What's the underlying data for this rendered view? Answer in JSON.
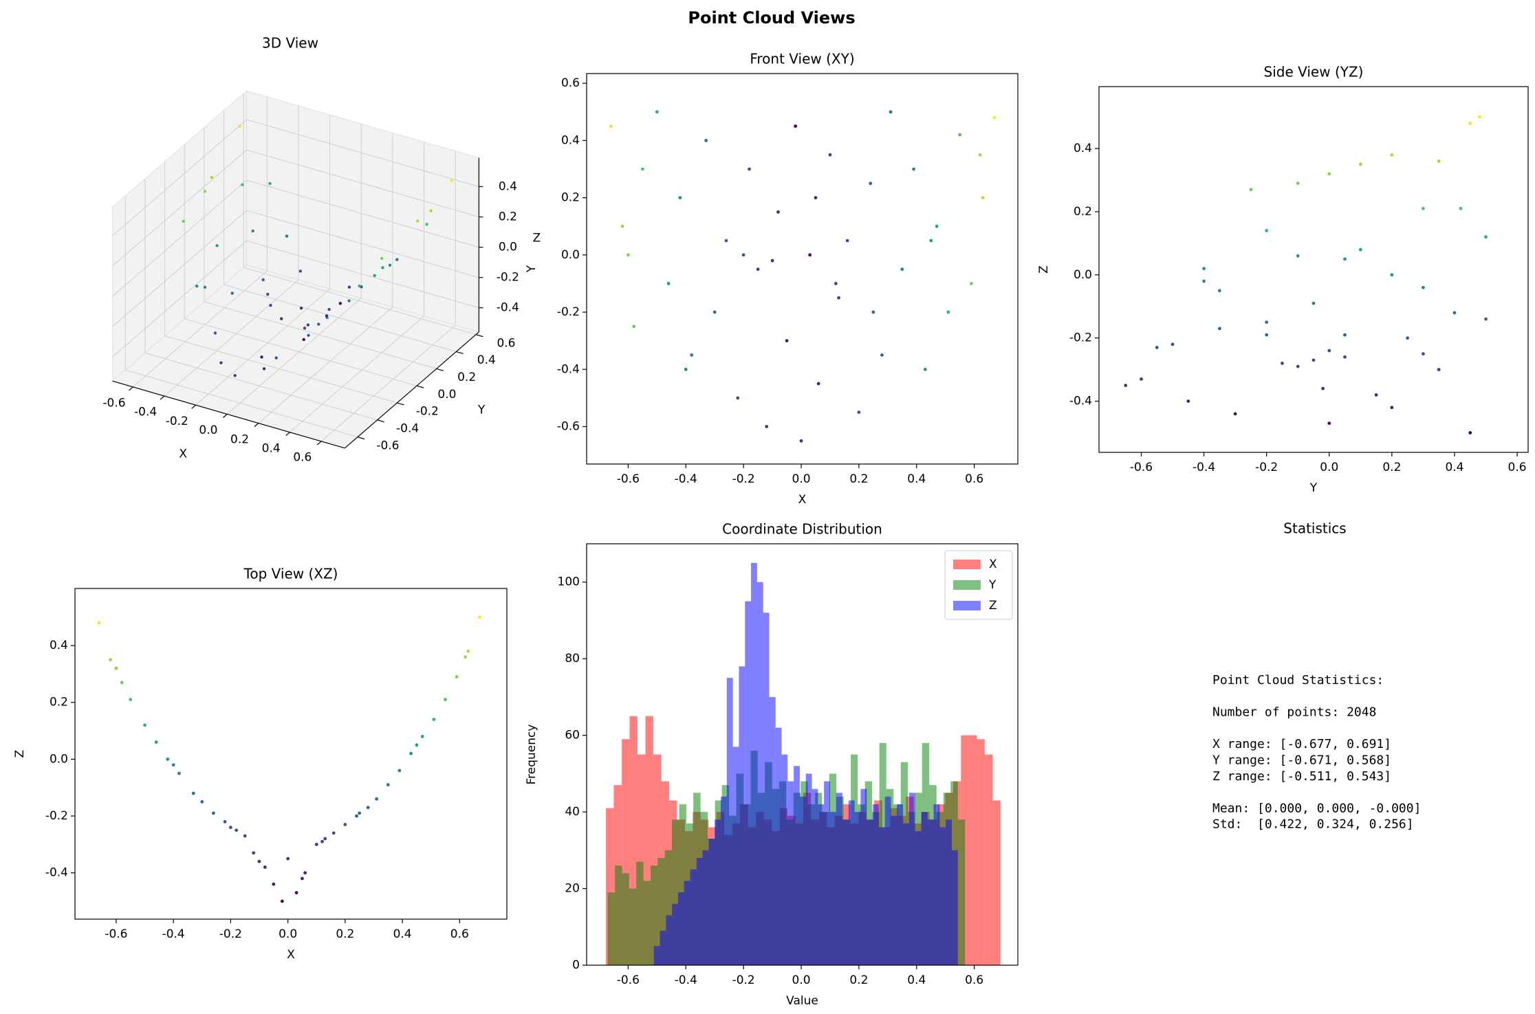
{
  "title": "Point Cloud Views",
  "chart_data": [
    {
      "type": "scatter3d",
      "title": "3D View",
      "xlabel": "X",
      "ylabel": "Y",
      "zlabel": "Z",
      "colormap": "viridis",
      "x": [
        -0.66,
        -0.62,
        -0.58,
        -0.55,
        -0.5,
        -0.46,
        -0.42,
        -0.38,
        -0.33,
        -0.3,
        -0.26,
        -0.22,
        -0.18,
        -0.15,
        -0.12,
        -0.08,
        -0.05,
        -0.02,
        0.0,
        0.03,
        0.06,
        0.1,
        0.13,
        0.16,
        0.2,
        0.24,
        0.28,
        0.31,
        0.35,
        0.39,
        0.43,
        0.47,
        0.51,
        0.55,
        0.59,
        0.63,
        0.67,
        -0.6,
        -0.4,
        -0.2,
        0.05,
        0.25,
        0.45,
        0.62,
        -0.1,
        0.12
      ],
      "y": [
        0.45,
        0.1,
        -0.25,
        0.3,
        0.5,
        -0.1,
        0.2,
        -0.35,
        0.4,
        -0.2,
        0.05,
        -0.5,
        0.3,
        -0.05,
        -0.6,
        0.15,
        -0.3,
        0.45,
        -0.65,
        0.0,
        -0.45,
        0.35,
        -0.15,
        0.05,
        -0.55,
        0.25,
        -0.35,
        0.5,
        -0.05,
        0.3,
        -0.4,
        0.1,
        -0.2,
        0.42,
        -0.1,
        0.2,
        0.48,
        0.0,
        -0.4,
        0.0,
        0.2,
        -0.2,
        0.05,
        0.35,
        -0.02,
        -0.1
      ],
      "z": [
        0.48,
        0.35,
        0.27,
        0.21,
        0.12,
        0.06,
        0.0,
        -0.05,
        -0.12,
        -0.15,
        -0.19,
        -0.22,
        -0.25,
        -0.27,
        -0.33,
        -0.38,
        -0.44,
        -0.5,
        -0.35,
        -0.47,
        -0.4,
        -0.3,
        -0.28,
        -0.26,
        -0.23,
        -0.2,
        -0.17,
        -0.14,
        -0.09,
        -0.04,
        0.02,
        0.08,
        0.14,
        0.21,
        0.29,
        0.38,
        0.5,
        0.32,
        -0.02,
        -0.24,
        -0.42,
        -0.19,
        0.05,
        0.36,
        -0.36,
        -0.29
      ],
      "xlim": [
        -0.73,
        0.75
      ],
      "ylim": [
        -0.73,
        0.63
      ],
      "zlim": [
        -0.56,
        0.59
      ],
      "xticks": [
        -0.6,
        -0.4,
        -0.2,
        {
          "value": 0,
          "label": "0.0"
        },
        0.2,
        0.4,
        0.6
      ],
      "yticks": [
        -0.6,
        -0.4,
        -0.2,
        {
          "value": 0,
          "label": "0.0"
        },
        0.2,
        0.4,
        0.6
      ],
      "zticks": [
        -0.4,
        -0.2,
        {
          "value": 0,
          "label": "0.0"
        },
        0.2,
        0.4
      ]
    },
    {
      "type": "scatter",
      "title": "Front View (XY)",
      "xlabel": "X",
      "ylabel": "Y",
      "colormap": "viridis",
      "x": [
        -0.66,
        -0.62,
        -0.58,
        -0.55,
        -0.5,
        -0.46,
        -0.42,
        -0.38,
        -0.33,
        -0.3,
        -0.26,
        -0.22,
        -0.18,
        -0.15,
        -0.12,
        -0.08,
        -0.05,
        -0.02,
        0.0,
        0.03,
        0.06,
        0.1,
        0.13,
        0.16,
        0.2,
        0.24,
        0.28,
        0.31,
        0.35,
        0.39,
        0.43,
        0.47,
        0.51,
        0.55,
        0.59,
        0.63,
        0.67,
        -0.6,
        -0.4,
        -0.2,
        0.05,
        0.25,
        0.45,
        0.62,
        -0.1,
        0.12
      ],
      "y": [
        0.45,
        0.1,
        -0.25,
        0.3,
        0.5,
        -0.1,
        0.2,
        -0.35,
        0.4,
        -0.2,
        0.05,
        -0.5,
        0.3,
        -0.05,
        -0.6,
        0.15,
        -0.3,
        0.45,
        -0.65,
        0.0,
        -0.45,
        0.35,
        -0.15,
        0.05,
        -0.55,
        0.25,
        -0.35,
        0.5,
        -0.05,
        0.3,
        -0.4,
        0.1,
        -0.2,
        0.42,
        -0.1,
        0.2,
        0.48,
        0.0,
        -0.4,
        0.0,
        0.2,
        -0.2,
        0.05,
        0.35,
        -0.02,
        -0.1
      ],
      "c": [
        0.48,
        0.35,
        0.27,
        0.21,
        0.12,
        0.06,
        0.0,
        -0.05,
        -0.12,
        -0.15,
        -0.19,
        -0.22,
        -0.25,
        -0.27,
        -0.33,
        -0.38,
        -0.44,
        -0.5,
        -0.35,
        -0.47,
        -0.4,
        -0.3,
        -0.28,
        -0.26,
        -0.23,
        -0.2,
        -0.17,
        -0.14,
        -0.09,
        -0.04,
        0.02,
        0.08,
        0.14,
        0.21,
        0.29,
        0.38,
        0.5,
        0.32,
        -0.02,
        -0.24,
        -0.42,
        -0.19,
        0.05,
        0.36,
        -0.36,
        -0.29
      ],
      "xlim": [
        -0.744,
        0.751
      ],
      "ylim": [
        -0.731,
        0.634
      ],
      "xticks": [
        -0.6,
        -0.4,
        -0.2,
        {
          "value": 0,
          "label": "0.0"
        },
        0.2,
        0.4,
        0.6
      ],
      "yticks": [
        -0.6,
        -0.4,
        -0.2,
        {
          "value": 0,
          "label": "0.0"
        },
        0.2,
        0.4,
        0.6
      ]
    },
    {
      "type": "scatter",
      "title": "Side View (YZ)",
      "xlabel": "Y",
      "ylabel": "Z",
      "colormap": "viridis",
      "x": [
        0.45,
        0.1,
        -0.25,
        0.3,
        0.5,
        -0.1,
        0.2,
        -0.35,
        0.4,
        -0.2,
        0.05,
        -0.5,
        0.3,
        -0.05,
        -0.6,
        0.15,
        -0.3,
        0.45,
        -0.65,
        0.0,
        -0.45,
        0.35,
        -0.15,
        0.05,
        -0.55,
        0.25,
        -0.35,
        0.5,
        -0.05,
        0.3,
        -0.4,
        0.1,
        -0.2,
        0.42,
        -0.1,
        0.2,
        0.48,
        0.0,
        -0.4,
        0.0,
        0.2,
        -0.2,
        0.05,
        0.35,
        -0.02,
        -0.1
      ],
      "y": [
        0.48,
        0.35,
        0.27,
        0.21,
        0.12,
        0.06,
        0.0,
        -0.05,
        -0.12,
        -0.15,
        -0.19,
        -0.22,
        -0.25,
        -0.27,
        -0.33,
        -0.38,
        -0.44,
        -0.5,
        -0.35,
        -0.47,
        -0.4,
        -0.3,
        -0.28,
        -0.26,
        -0.23,
        -0.2,
        -0.17,
        -0.14,
        -0.09,
        -0.04,
        0.02,
        0.08,
        0.14,
        0.21,
        0.29,
        0.38,
        0.5,
        0.32,
        -0.02,
        -0.24,
        -0.42,
        -0.19,
        0.05,
        0.36,
        -0.36,
        -0.29
      ],
      "c": [
        0.48,
        0.35,
        0.27,
        0.21,
        0.12,
        0.06,
        0.0,
        -0.05,
        -0.12,
        -0.15,
        -0.19,
        -0.22,
        -0.25,
        -0.27,
        -0.33,
        -0.38,
        -0.44,
        -0.5,
        -0.35,
        -0.47,
        -0.4,
        -0.3,
        -0.28,
        -0.26,
        -0.23,
        -0.2,
        -0.17,
        -0.14,
        -0.09,
        -0.04,
        0.02,
        0.08,
        0.14,
        0.21,
        0.29,
        0.38,
        0.5,
        0.32,
        -0.02,
        -0.24,
        -0.42,
        -0.19,
        0.05,
        0.36,
        -0.36,
        -0.29
      ],
      "xlim": [
        -0.735,
        0.635
      ],
      "ylim": [
        -0.562,
        0.596
      ],
      "xticks": [
        -0.6,
        -0.4,
        -0.2,
        {
          "value": 0,
          "label": "0.0"
        },
        0.2,
        0.4,
        0.6
      ],
      "yticks": [
        -0.4,
        -0.2,
        {
          "value": 0,
          "label": "0.0"
        },
        0.2,
        0.4
      ]
    },
    {
      "type": "scatter",
      "title": "Top View (XZ)",
      "xlabel": "X",
      "ylabel": "Z",
      "colormap": "viridis",
      "x": [
        -0.66,
        -0.62,
        -0.58,
        -0.55,
        -0.5,
        -0.46,
        -0.42,
        -0.38,
        -0.33,
        -0.3,
        -0.26,
        -0.22,
        -0.18,
        -0.15,
        -0.12,
        -0.08,
        -0.05,
        -0.02,
        0.0,
        0.03,
        0.06,
        0.1,
        0.13,
        0.16,
        0.2,
        0.24,
        0.28,
        0.31,
        0.35,
        0.39,
        0.43,
        0.47,
        0.51,
        0.55,
        0.59,
        0.63,
        0.67,
        -0.6,
        -0.4,
        -0.2,
        0.05,
        0.25,
        0.45,
        0.62,
        -0.1,
        0.12
      ],
      "y": [
        0.48,
        0.35,
        0.27,
        0.21,
        0.12,
        0.06,
        0.0,
        -0.05,
        -0.12,
        -0.15,
        -0.19,
        -0.22,
        -0.25,
        -0.27,
        -0.33,
        -0.38,
        -0.44,
        -0.5,
        -0.35,
        -0.47,
        -0.4,
        -0.3,
        -0.28,
        -0.26,
        -0.23,
        -0.2,
        -0.17,
        -0.14,
        -0.09,
        -0.04,
        0.02,
        0.08,
        0.14,
        0.21,
        0.29,
        0.38,
        0.5,
        0.32,
        -0.02,
        -0.24,
        -0.42,
        -0.19,
        0.05,
        0.36,
        -0.36,
        -0.29
      ],
      "c": [
        0.48,
        0.35,
        0.27,
        0.21,
        0.12,
        0.06,
        0.0,
        -0.05,
        -0.12,
        -0.15,
        -0.19,
        -0.22,
        -0.25,
        -0.27,
        -0.33,
        -0.38,
        -0.44,
        -0.5,
        -0.35,
        -0.47,
        -0.4,
        -0.3,
        -0.28,
        -0.26,
        -0.23,
        -0.2,
        -0.17,
        -0.14,
        -0.09,
        -0.04,
        0.02,
        0.08,
        0.14,
        0.21,
        0.29,
        0.38,
        0.5,
        0.32,
        -0.02,
        -0.24,
        -0.42,
        -0.19,
        0.05,
        0.36,
        -0.36,
        -0.29
      ],
      "xlim": [
        -0.744,
        0.765
      ],
      "ylim": [
        -0.563,
        0.601
      ],
      "xticks": [
        -0.6,
        -0.4,
        -0.2,
        {
          "value": 0,
          "label": "0.0"
        },
        0.2,
        0.4,
        0.6
      ],
      "yticks": [
        -0.4,
        -0.2,
        {
          "value": 0,
          "label": "0.0"
        },
        0.2,
        0.4
      ]
    },
    {
      "type": "histogram",
      "title": "Coordinate Distribution",
      "xlabel": "Value",
      "ylabel": "Frequency",
      "alpha": 0.5,
      "legend": "upper right",
      "xlim": [
        -0.744,
        0.751
      ],
      "ylim": [
        0,
        110
      ],
      "xticks": [
        -0.6,
        -0.4,
        -0.2,
        {
          "value": 0,
          "label": "0.0"
        },
        0.2,
        0.4,
        0.6
      ],
      "yticks": [
        0,
        20,
        40,
        60,
        80,
        100
      ],
      "series": [
        {
          "name": "X",
          "color": "#ff0000",
          "bins": [
            -0.677,
            -0.65,
            -0.622,
            -0.595,
            -0.568,
            -0.54,
            -0.513,
            -0.485,
            -0.458,
            -0.431,
            -0.403,
            -0.376,
            -0.349,
            -0.321,
            -0.294,
            -0.267,
            -0.239,
            -0.212,
            -0.185,
            -0.157,
            -0.13,
            -0.102,
            -0.075,
            -0.048,
            -0.02,
            0.007,
            0.034,
            0.062,
            0.089,
            0.116,
            0.144,
            0.171,
            0.199,
            0.226,
            0.253,
            0.281,
            0.308,
            0.335,
            0.363,
            0.39,
            0.417,
            0.445,
            0.472,
            0.499,
            0.527,
            0.554,
            0.582,
            0.609,
            0.636,
            0.664,
            0.691
          ],
          "values": [
            41,
            47,
            59,
            65,
            55,
            65,
            55,
            48,
            43,
            38,
            35,
            40,
            38,
            36,
            40,
            34,
            37,
            42,
            36,
            40,
            38,
            35,
            41,
            39,
            37,
            45,
            38,
            40,
            36,
            39,
            42,
            37,
            40,
            38,
            43,
            36,
            41,
            39,
            44,
            37,
            40,
            38,
            42,
            45,
            48,
            60,
            60,
            59,
            55,
            43
          ]
        },
        {
          "name": "Y",
          "color": "#008000",
          "bins": [
            -0.671,
            -0.646,
            -0.621,
            -0.597,
            -0.572,
            -0.547,
            -0.522,
            -0.498,
            -0.473,
            -0.448,
            -0.423,
            -0.398,
            -0.374,
            -0.349,
            -0.324,
            -0.299,
            -0.275,
            -0.25,
            -0.225,
            -0.2,
            -0.175,
            -0.151,
            -0.126,
            -0.101,
            -0.076,
            -0.052,
            -0.027,
            -0.002,
            0.023,
            0.048,
            0.072,
            0.097,
            0.122,
            0.147,
            0.172,
            0.196,
            0.221,
            0.246,
            0.271,
            0.295,
            0.32,
            0.345,
            0.37,
            0.394,
            0.419,
            0.444,
            0.469,
            0.493,
            0.518,
            0.543,
            0.568
          ],
          "values": [
            19,
            26,
            24,
            20,
            27,
            22,
            26,
            28,
            30,
            38,
            42,
            37,
            45,
            40,
            33,
            43,
            47,
            39,
            50,
            42,
            56,
            45,
            53,
            46,
            48,
            38,
            45,
            48,
            42,
            45,
            40,
            50,
            44,
            38,
            55,
            42,
            48,
            40,
            58,
            46,
            42,
            53,
            40,
            45,
            58,
            47,
            40,
            45,
            48,
            38
          ]
        },
        {
          "name": "Z",
          "color": "#0000ff",
          "bins": [
            -0.511,
            -0.49,
            -0.469,
            -0.448,
            -0.427,
            -0.406,
            -0.385,
            -0.363,
            -0.342,
            -0.321,
            -0.3,
            -0.279,
            -0.258,
            -0.237,
            -0.216,
            -0.195,
            -0.174,
            -0.153,
            -0.132,
            -0.111,
            -0.089,
            -0.068,
            -0.047,
            -0.026,
            -0.005,
            0.016,
            0.037,
            0.058,
            0.079,
            0.1,
            0.121,
            0.143,
            0.164,
            0.185,
            0.206,
            0.227,
            0.248,
            0.269,
            0.29,
            0.311,
            0.332,
            0.353,
            0.374,
            0.395,
            0.416,
            0.438,
            0.459,
            0.48,
            0.501,
            0.522,
            0.543
          ],
          "values": [
            5,
            9,
            13,
            16,
            19,
            22,
            25,
            28,
            30,
            33,
            38,
            44,
            75,
            57,
            78,
            95,
            105,
            100,
            92,
            70,
            62,
            55,
            48,
            52,
            44,
            50,
            46,
            42,
            48,
            40,
            45,
            38,
            43,
            40,
            46,
            38,
            42,
            36,
            44,
            39,
            42,
            37,
            45,
            35,
            40,
            38,
            42,
            36,
            38,
            30
          ]
        }
      ]
    }
  ],
  "statistics": {
    "title": "Statistics",
    "blocks": [
      [
        "Point Cloud Statistics:"
      ],
      [
        "Number of points: 2048"
      ],
      [
        "X range: [-0.677, 0.691]",
        "Y range: [-0.671, 0.568]",
        "Z range: [-0.511, 0.543]"
      ],
      [
        "Mean: [0.000, 0.000, -0.000]",
        "Std:  [0.422, 0.324, 0.256]"
      ]
    ]
  }
}
